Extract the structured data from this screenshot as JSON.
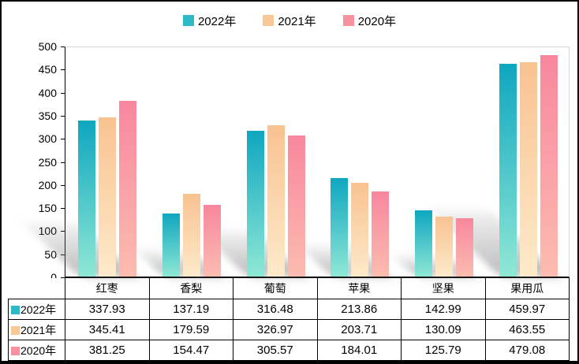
{
  "window": {
    "background": "#ffffff",
    "frame_border_color": "#000000"
  },
  "chart_data": {
    "type": "bar",
    "title": "",
    "xlabel": "",
    "ylabel": "",
    "categories": [
      "红枣",
      "香梨",
      "葡萄",
      "苹果",
      "坚果",
      "果用瓜"
    ],
    "series": [
      {
        "name": "2022年",
        "values": [
          337.93,
          137.19,
          316.48,
          213.86,
          142.99,
          459.97
        ],
        "color_top": "#0fa6c0",
        "color_bottom": "#8fe8d5",
        "swatch": "#2fb9c7"
      },
      {
        "name": "2021年",
        "values": [
          345.41,
          179.59,
          326.97,
          203.71,
          130.09,
          463.55
        ],
        "color_top": "#f9c291",
        "color_bottom": "#fdeaca",
        "swatch": "#f8c997"
      },
      {
        "name": "2020年",
        "values": [
          381.25,
          154.47,
          305.57,
          184.01,
          125.79,
          479.08
        ],
        "color_top": "#f8879e",
        "color_bottom": "#fcbcb0",
        "swatch": "#f7909f"
      }
    ],
    "ylim": [
      0,
      500
    ],
    "ystep": 50,
    "grid": false,
    "legend_position": "top",
    "axis_color": "#000000",
    "plot_border_color": "#d9d9d9",
    "bar_shadow": true,
    "data_table_shown": true,
    "value_decimals": 2
  }
}
